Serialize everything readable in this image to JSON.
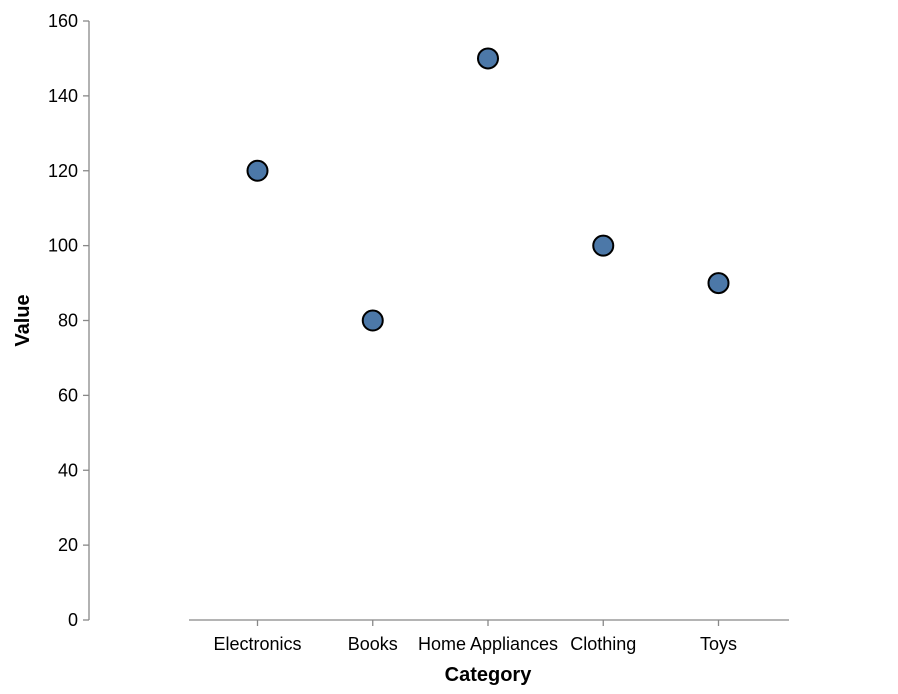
{
  "chart_data": {
    "type": "scatter",
    "categories": [
      "Electronics",
      "Books",
      "Home Appliances",
      "Clothing",
      "Toys"
    ],
    "values": [
      120,
      80,
      150,
      100,
      90
    ],
    "xlabel": "Category",
    "ylabel": "Value",
    "ylim": [
      0,
      160
    ],
    "yticks": [
      0,
      20,
      40,
      60,
      80,
      100,
      120,
      140,
      160
    ],
    "grid": false,
    "point_color": "#4c78a8",
    "point_stroke": "#000000"
  }
}
